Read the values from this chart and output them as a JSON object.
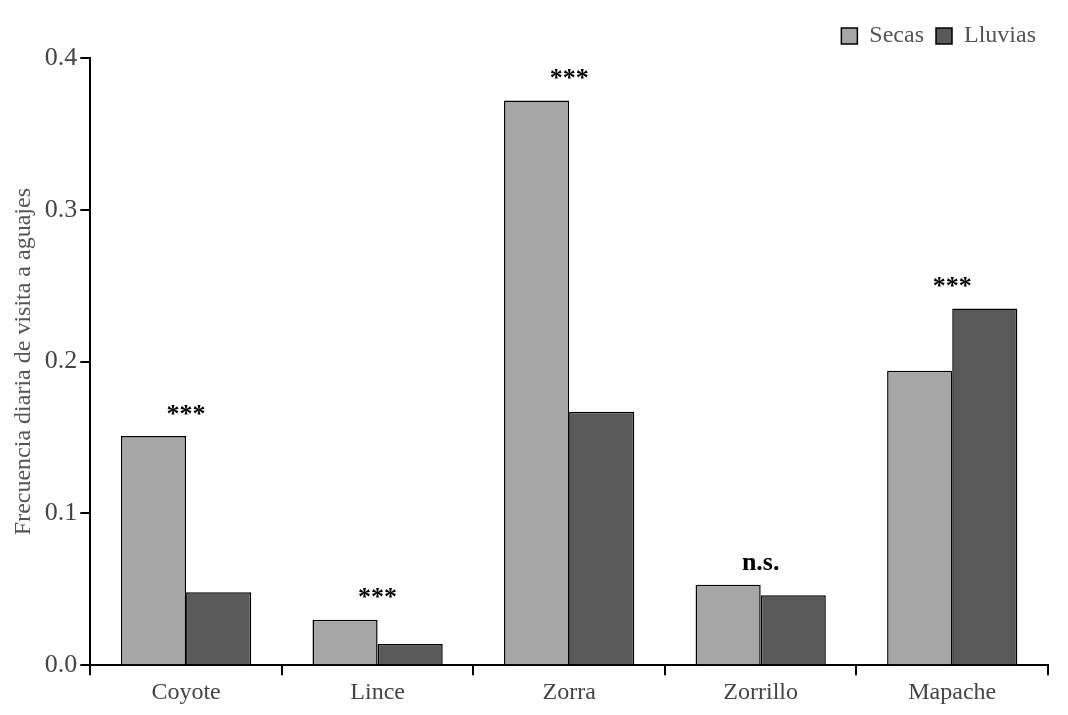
{
  "chart_data": {
    "type": "bar",
    "ylabel": "Frecuencia diaria de visita a aguajes",
    "categories": [
      "Coyote",
      "Lince",
      "Zorra",
      "Zorrillo",
      "Mapache"
    ],
    "series": [
      {
        "name": "Secas",
        "color": "#a6a6a6",
        "values": [
          0.151,
          0.03,
          0.372,
          0.053,
          0.194
        ]
      },
      {
        "name": "Lluvias",
        "color": "#595959",
        "values": [
          0.048,
          0.014,
          0.167,
          0.046,
          0.235
        ]
      }
    ],
    "ylim": [
      0,
      0.4
    ],
    "yticks": [
      {
        "value": 0,
        "label": "0.0"
      },
      0.1,
      0.2,
      0.3,
      0.4
    ],
    "grid": false,
    "legend": "top right",
    "annotations": [
      {
        "text": "***",
        "x": "Coyote",
        "y": 0.151
      },
      {
        "text": "***",
        "x": "Lince",
        "y": 0.03
      },
      {
        "text": "***",
        "x": "Zorra",
        "y": 0.372
      },
      {
        "text": "n.s.",
        "x": "Zorrillo",
        "y": 0.053
      },
      {
        "text": "***",
        "x": "Mapache",
        "y": 0.235
      }
    ]
  }
}
